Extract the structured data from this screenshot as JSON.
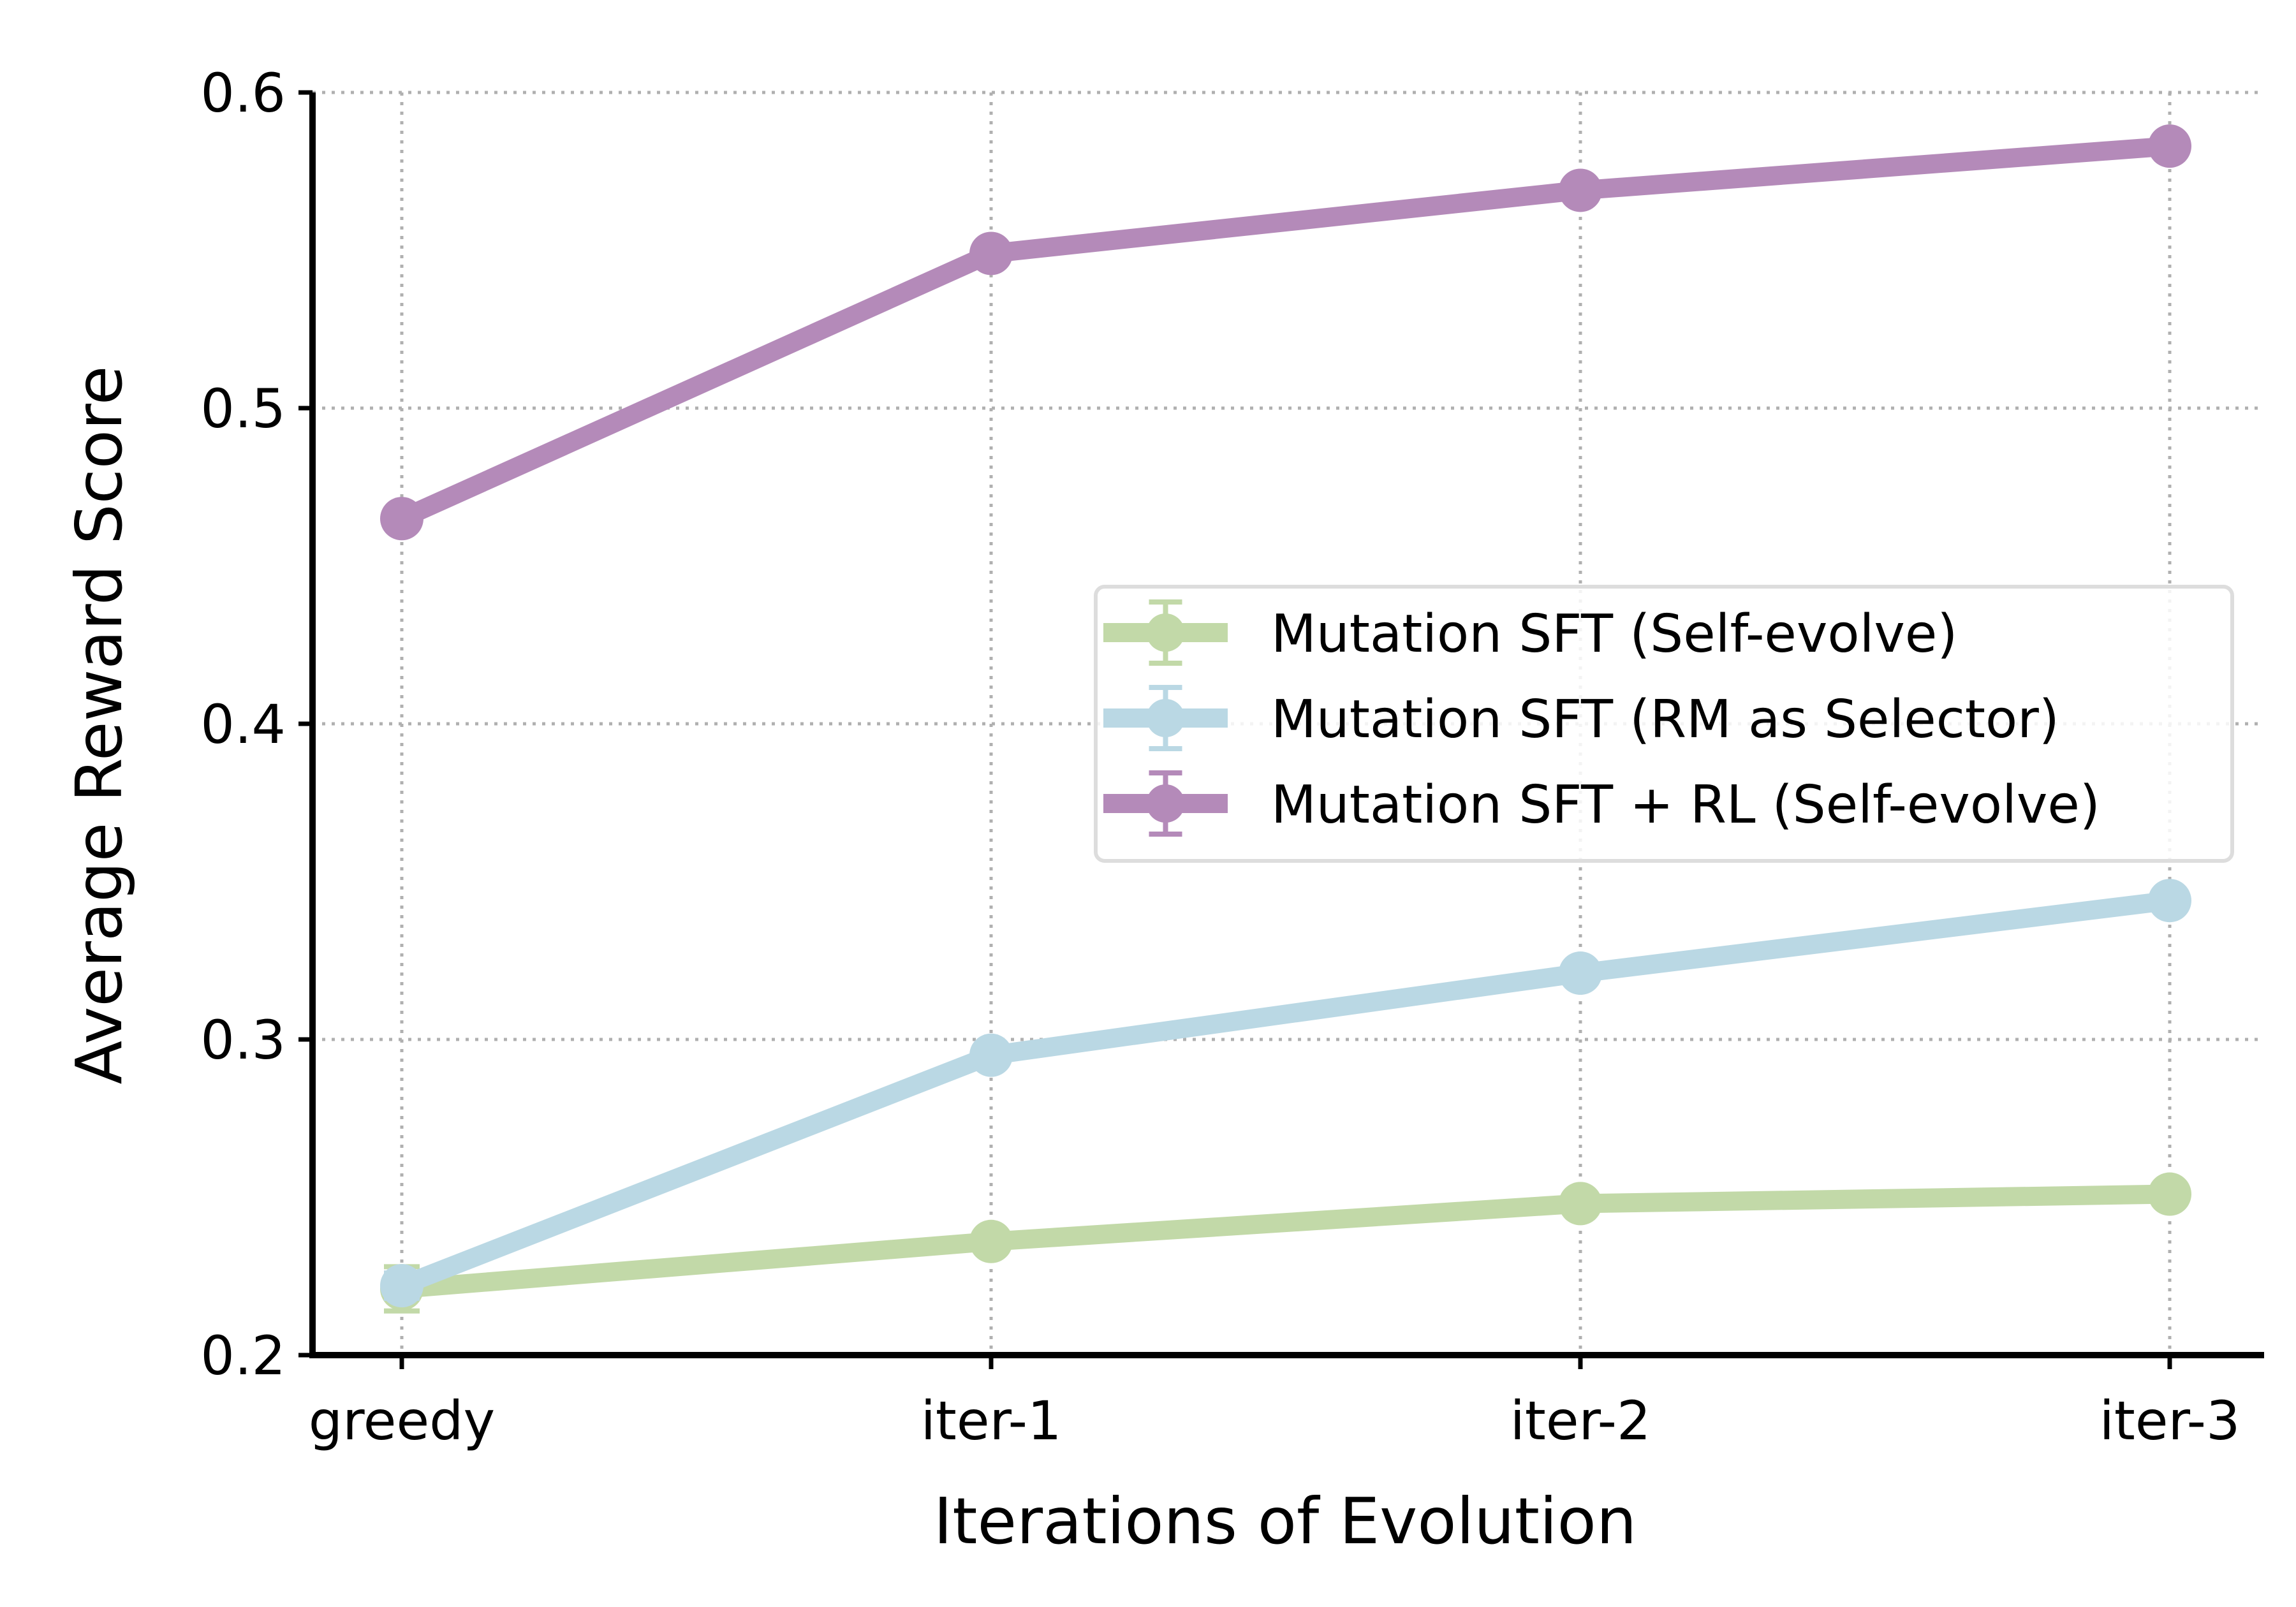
{
  "chart_data": {
    "type": "line",
    "categories": [
      "greedy",
      "iter-1",
      "iter-2",
      "iter-3"
    ],
    "xlabel": "Iterations of Evolution",
    "ylabel": "Average Reward Score",
    "ylim": [
      0.2,
      0.6
    ],
    "yticks": [
      0.2,
      0.3,
      0.4,
      0.5,
      0.6
    ],
    "ytick_labels": [
      "0.2",
      "0.3",
      "0.4",
      "0.5",
      "0.6"
    ],
    "grid": true,
    "legend_position": "center-right",
    "series": [
      {
        "name": "Mutation SFT (Self-evolve)",
        "color": "#c2d9a8",
        "values": [
          0.221,
          0.236,
          0.248,
          0.251
        ],
        "errors": [
          0.007,
          0.003,
          0.003,
          0.003
        ]
      },
      {
        "name": "Mutation SFT (RM as Selector)",
        "color": "#bad8e4",
        "values": [
          0.222,
          0.295,
          0.321,
          0.344
        ],
        "errors": [
          0.004,
          0.003,
          0.003,
          0.003
        ]
      },
      {
        "name": "Mutation SFT + RL (Self-evolve)",
        "color": "#b48ab9",
        "values": [
          0.465,
          0.549,
          0.569,
          0.583
        ],
        "errors": [
          0.003,
          0.003,
          0.003,
          0.003
        ]
      }
    ]
  }
}
